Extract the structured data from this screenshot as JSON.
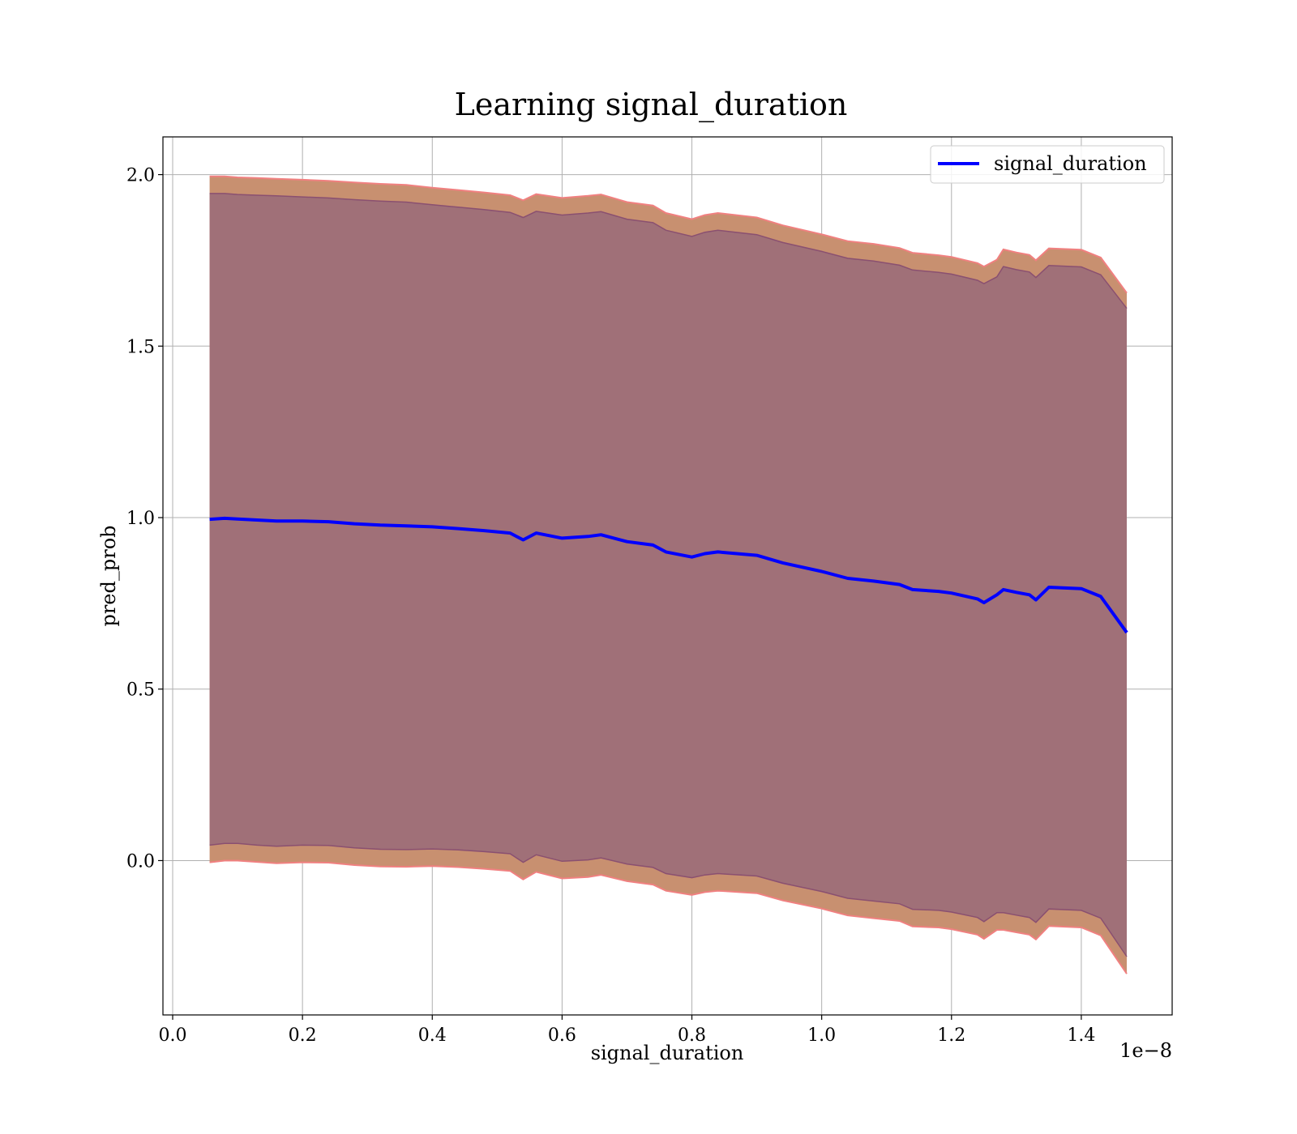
{
  "chart_data": {
    "type": "line",
    "title": "Learning signal_duration",
    "xlabel": "signal_duration",
    "ylabel": "pred_prob",
    "x_offset_label": "1e−8",
    "xlim": [
      -0.015,
      1.54
    ],
    "ylim": [
      -0.45,
      2.11
    ],
    "x_ticks": [
      0.0,
      0.2,
      0.4,
      0.6,
      0.8,
      1.0,
      1.2,
      1.4
    ],
    "x_tick_labels": [
      "0.0",
      "0.2",
      "0.4",
      "0.6",
      "0.8",
      "1.0",
      "1.2",
      "1.4"
    ],
    "y_ticks": [
      0.0,
      0.5,
      1.0,
      1.5,
      2.0
    ],
    "y_tick_labels": [
      "0.0",
      "0.5",
      "1.0",
      "1.5",
      "2.0"
    ],
    "grid": true,
    "legend_position": "top-right",
    "colors": {
      "line": "#0000ff",
      "outer_band": "#c89070",
      "outer_band_edge": "#f08080",
      "inner_band": "#a07078",
      "inner_band_edge": "#8a5070"
    },
    "series": [
      {
        "name": "signal_duration",
        "x": [
          0.057,
          0.08,
          0.1,
          0.13,
          0.16,
          0.2,
          0.24,
          0.28,
          0.32,
          0.36,
          0.4,
          0.44,
          0.48,
          0.52,
          0.54,
          0.56,
          0.6,
          0.64,
          0.66,
          0.7,
          0.74,
          0.76,
          0.8,
          0.82,
          0.84,
          0.9,
          0.94,
          1.0,
          1.04,
          1.08,
          1.12,
          1.14,
          1.18,
          1.2,
          1.24,
          1.25,
          1.27,
          1.28,
          1.3,
          1.32,
          1.33,
          1.35,
          1.4,
          1.43,
          1.47
        ],
        "y": [
          0.995,
          0.998,
          0.996,
          0.993,
          0.99,
          0.99,
          0.988,
          0.982,
          0.978,
          0.976,
          0.973,
          0.968,
          0.962,
          0.955,
          0.935,
          0.955,
          0.94,
          0.945,
          0.95,
          0.93,
          0.92,
          0.9,
          0.885,
          0.895,
          0.9,
          0.89,
          0.868,
          0.843,
          0.823,
          0.815,
          0.805,
          0.79,
          0.785,
          0.78,
          0.763,
          0.752,
          0.775,
          0.79,
          0.782,
          0.775,
          0.76,
          0.797,
          0.793,
          0.77,
          0.665
        ],
        "outer_upper": [
          1.995,
          1.995,
          1.992,
          1.99,
          1.988,
          1.985,
          1.982,
          1.977,
          1.973,
          1.97,
          1.962,
          1.955,
          1.948,
          1.94,
          1.925,
          1.943,
          1.932,
          1.938,
          1.942,
          1.92,
          1.91,
          1.888,
          1.87,
          1.882,
          1.888,
          1.875,
          1.852,
          1.826,
          1.806,
          1.798,
          1.786,
          1.772,
          1.765,
          1.76,
          1.742,
          1.732,
          1.752,
          1.782,
          1.773,
          1.766,
          1.75,
          1.785,
          1.781,
          1.758,
          1.655
        ],
        "inner_upper": [
          1.945,
          1.945,
          1.942,
          1.94,
          1.938,
          1.935,
          1.932,
          1.927,
          1.923,
          1.92,
          1.912,
          1.905,
          1.898,
          1.89,
          1.875,
          1.893,
          1.882,
          1.888,
          1.892,
          1.87,
          1.86,
          1.838,
          1.82,
          1.832,
          1.838,
          1.825,
          1.802,
          1.776,
          1.756,
          1.748,
          1.736,
          1.722,
          1.715,
          1.71,
          1.692,
          1.682,
          1.702,
          1.732,
          1.723,
          1.716,
          1.7,
          1.735,
          1.731,
          1.708,
          1.61
        ],
        "inner_lower": [
          0.045,
          0.05,
          0.05,
          0.045,
          0.042,
          0.045,
          0.044,
          0.037,
          0.033,
          0.032,
          0.034,
          0.031,
          0.026,
          0.02,
          -0.005,
          0.017,
          -0.002,
          0.002,
          0.008,
          -0.01,
          -0.02,
          -0.038,
          -0.05,
          -0.042,
          -0.038,
          -0.045,
          -0.066,
          -0.09,
          -0.11,
          -0.118,
          -0.126,
          -0.142,
          -0.145,
          -0.15,
          -0.166,
          -0.178,
          -0.152,
          -0.152,
          -0.159,
          -0.166,
          -0.18,
          -0.141,
          -0.145,
          -0.168,
          -0.28
        ],
        "outer_lower": [
          -0.005,
          0.0,
          0.0,
          -0.004,
          -0.008,
          -0.005,
          -0.006,
          -0.013,
          -0.017,
          -0.018,
          -0.016,
          -0.019,
          -0.024,
          -0.03,
          -0.055,
          -0.033,
          -0.052,
          -0.048,
          -0.042,
          -0.06,
          -0.07,
          -0.088,
          -0.1,
          -0.092,
          -0.088,
          -0.095,
          -0.116,
          -0.14,
          -0.16,
          -0.168,
          -0.176,
          -0.192,
          -0.195,
          -0.2,
          -0.216,
          -0.228,
          -0.202,
          -0.202,
          -0.209,
          -0.216,
          -0.23,
          -0.191,
          -0.195,
          -0.218,
          -0.33
        ]
      }
    ]
  }
}
